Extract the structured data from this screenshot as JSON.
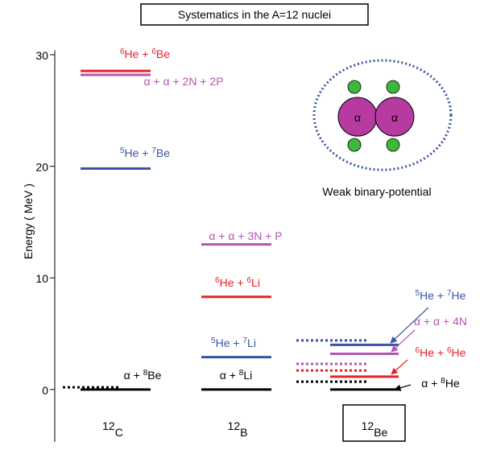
{
  "chart_data": {
    "type": "level",
    "title": "Systematics in the A=12 nuclei",
    "ylabel": "Energy ( MeV )",
    "ylim": [
      -4.7,
      30.4
    ],
    "yticks": [
      0,
      10,
      20,
      30
    ],
    "annotation": "Weak binary-potential",
    "cluster_label": "α",
    "columns": [
      {
        "name": [
          {
            "sup": "12"
          },
          "C"
        ],
        "levels": [
          {
            "energy": 28.55,
            "color": "#e8202a",
            "style": "solid",
            "label": [
              {
                "sup": "6"
              },
              "He + ",
              {
                "sup": "6"
              },
              "Be"
            ]
          },
          {
            "energy": 28.2,
            "color": "#b455b4",
            "style": "solid",
            "label": [
              "α + α + 2N + 2P"
            ]
          },
          {
            "energy": 19.8,
            "color": "#3a54a4",
            "style": "solid",
            "label": [
              {
                "sup": "5"
              },
              "He + ",
              {
                "sup": "7"
              },
              "Be"
            ]
          },
          {
            "energy": 0,
            "color": "#000000",
            "style": "solid",
            "label": [
              "α  + ",
              {
                "sup": "8"
              },
              "Be"
            ]
          },
          {
            "energy": 0.2,
            "color": "#000000",
            "style": "dotted"
          }
        ]
      },
      {
        "name": [
          {
            "sup": "12"
          },
          "B"
        ],
        "levels": [
          {
            "energy": 13.0,
            "color": "#b455b4",
            "style": "solid",
            "label": [
              "α + α + 3N + P"
            ]
          },
          {
            "energy": 8.3,
            "color": "#e8202a",
            "style": "solid",
            "label": [
              {
                "sup": "6"
              },
              "He + ",
              {
                "sup": "6"
              },
              "Li"
            ]
          },
          {
            "energy": 2.9,
            "color": "#3a54a4",
            "style": "solid",
            "label": [
              {
                "sup": "5"
              },
              "He + ",
              {
                "sup": "7"
              },
              "Li"
            ]
          },
          {
            "energy": 0,
            "color": "#000000",
            "style": "solid",
            "label": [
              "α + ",
              {
                "sup": "8"
              },
              "Li"
            ]
          }
        ]
      },
      {
        "name": [
          {
            "sup": "12"
          },
          "Be"
        ],
        "levels": [
          {
            "energy": 4.0,
            "color": "#3a54a4",
            "style": "solid",
            "label": [
              {
                "sup": "5"
              },
              "He + ",
              {
                "sup": "7"
              },
              "He"
            ]
          },
          {
            "energy": 3.2,
            "color": "#b455b4",
            "style": "solid",
            "label": [
              "α + α + 4N"
            ]
          },
          {
            "energy": 1.15,
            "color": "#e8202a",
            "style": "solid",
            "label": [
              {
                "sup": "6"
              },
              "He + ",
              {
                "sup": "6"
              },
              "He"
            ]
          },
          {
            "energy": 0,
            "color": "#000000",
            "style": "solid",
            "label": [
              "α  + ",
              {
                "sup": "8"
              },
              "He"
            ]
          },
          {
            "energy": 4.4,
            "color": "#3a54a4",
            "style": "dotted"
          },
          {
            "energy": 2.3,
            "color": "#b455b4",
            "style": "dotted"
          },
          {
            "energy": 1.7,
            "color": "#e8202a",
            "style": "dotted"
          },
          {
            "energy": 0.7,
            "color": "#000000",
            "style": "dotted"
          }
        ]
      }
    ]
  }
}
